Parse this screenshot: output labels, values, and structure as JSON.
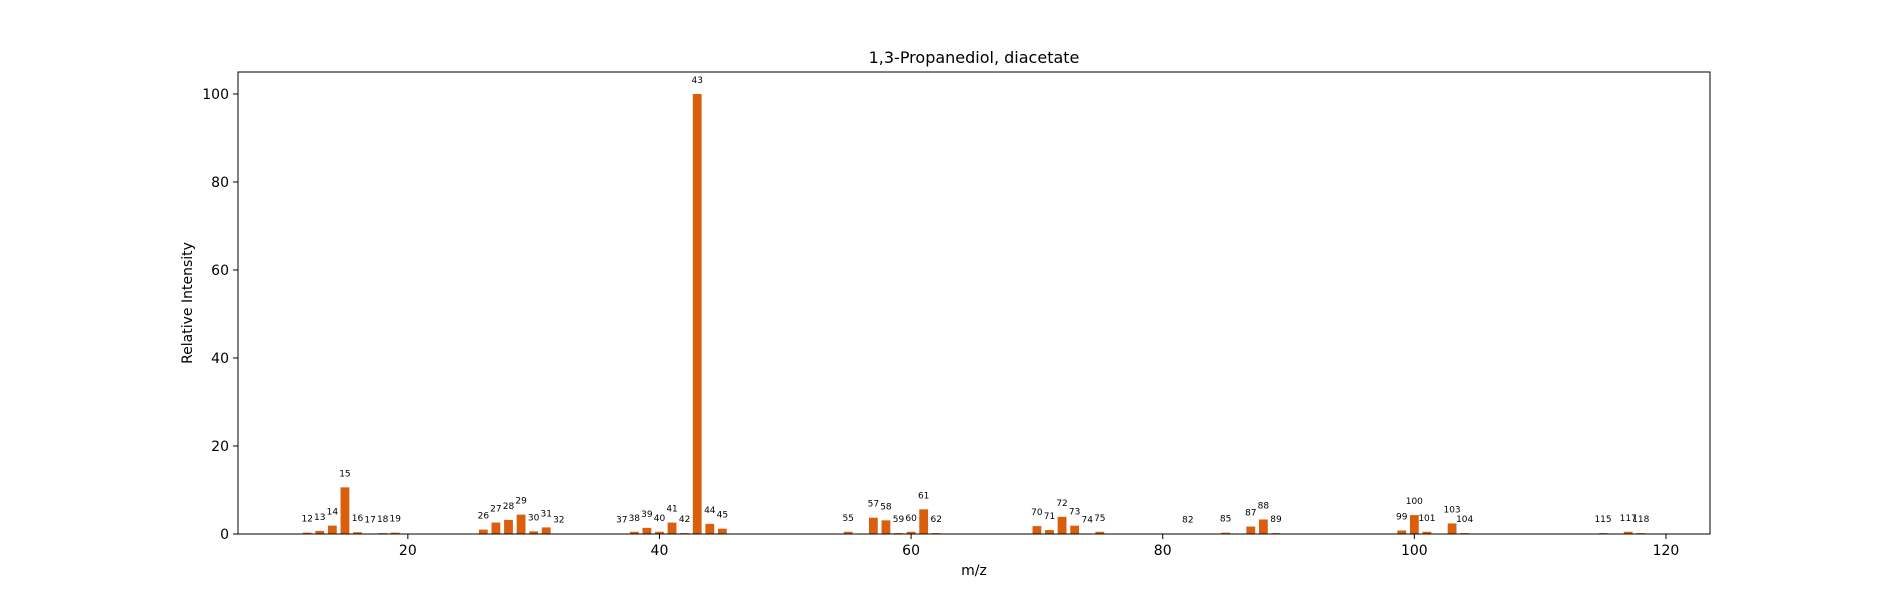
{
  "chart_data": {
    "type": "bar",
    "title": "1,3-Propanediol, diacetate",
    "xlabel": "m/z",
    "ylabel": "Relative Intensity",
    "xlim": [
      6.5,
      123.5
    ],
    "ylim": [
      0,
      105
    ],
    "xticks": [
      20,
      40,
      60,
      80,
      100,
      120
    ],
    "yticks": [
      0,
      20,
      40,
      60,
      80,
      100
    ],
    "grid": false,
    "bar_color": "#d95f0e",
    "x": [
      12,
      13,
      14,
      15,
      16,
      17,
      18,
      19,
      26,
      27,
      28,
      29,
      30,
      31,
      32,
      37,
      38,
      39,
      40,
      41,
      42,
      43,
      44,
      45,
      55,
      57,
      58,
      59,
      60,
      61,
      62,
      70,
      71,
      72,
      73,
      74,
      75,
      82,
      85,
      87,
      88,
      89,
      99,
      100,
      101,
      103,
      104,
      115,
      117,
      118
    ],
    "values": [
      0.3,
      0.7,
      1.9,
      10.6,
      0.4,
      0.1,
      0.2,
      0.3,
      1.0,
      2.6,
      3.2,
      4.4,
      0.6,
      1.5,
      0.1,
      0.1,
      0.5,
      1.4,
      0.5,
      2.6,
      0.2,
      100.0,
      2.3,
      1.2,
      0.5,
      3.7,
      3.1,
      0.2,
      0.5,
      5.6,
      0.2,
      1.8,
      0.9,
      3.9,
      1.9,
      0.1,
      0.5,
      0.1,
      0.3,
      1.7,
      3.3,
      0.2,
      0.8,
      4.3,
      0.5,
      2.4,
      0.2,
      0.2,
      0.5,
      0.2
    ],
    "labels": [
      "12",
      "13",
      "14",
      "15",
      "16",
      "17",
      "18",
      "19",
      "26",
      "27",
      "28",
      "29",
      "30",
      "31",
      "32",
      "37",
      "38",
      "39",
      "40",
      "41",
      "42",
      "43",
      "44",
      "45",
      "55",
      "57",
      "58",
      "59",
      "60",
      "61",
      "62",
      "70",
      "71",
      "72",
      "73",
      "74",
      "75",
      "82",
      "85",
      "87",
      "88",
      "89",
      "99",
      "100",
      "101",
      "103",
      "104",
      "115",
      "117",
      "118"
    ]
  }
}
